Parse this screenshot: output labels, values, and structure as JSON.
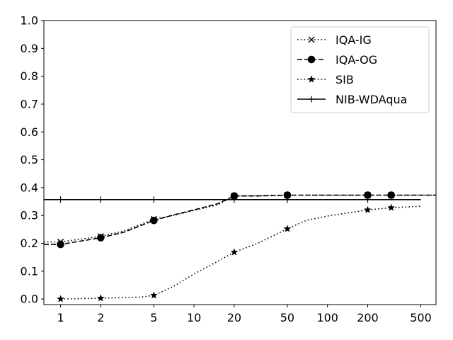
{
  "chart_data": {
    "type": "line",
    "title": "",
    "xlabel": "",
    "ylabel": "",
    "x_scale": "log",
    "xlim": [
      0.75,
      650
    ],
    "ylim": [
      -0.02,
      1.0
    ],
    "x_ticks": [
      1,
      2,
      5,
      10,
      20,
      50,
      100,
      200,
      500
    ],
    "x_tick_labels": [
      "1",
      "2",
      "5",
      "10",
      "20",
      "50",
      "100",
      "200",
      "500"
    ],
    "y_ticks": [
      0.0,
      0.1,
      0.2,
      0.3,
      0.4,
      0.5,
      0.6,
      0.7,
      0.8,
      0.9,
      1.0
    ],
    "y_tick_labels": [
      "0.0",
      "0.1",
      "0.2",
      "0.3",
      "0.4",
      "0.5",
      "0.6",
      "0.7",
      "0.8",
      "0.9",
      "1.0"
    ],
    "grid": false,
    "legend_position": "top-right",
    "series": [
      {
        "name": "IQA-IG",
        "color": "#000000",
        "line_style": "dotted",
        "marker": "x",
        "x": [
          0.75,
          1,
          2,
          3,
          5,
          7,
          10,
          15,
          20,
          30,
          50,
          100,
          200,
          300,
          650
        ],
        "y": [
          0.205,
          0.205,
          0.225,
          0.245,
          0.287,
          0.3,
          0.318,
          0.338,
          0.37,
          0.372,
          0.373,
          0.373,
          0.373,
          0.373,
          0.373
        ],
        "marker_x": [
          1,
          2,
          5,
          20,
          50,
          200,
          300
        ],
        "marker_y": [
          0.205,
          0.225,
          0.287,
          0.37,
          0.373,
          0.373,
          0.373
        ]
      },
      {
        "name": "IQA-OG",
        "color": "#000000",
        "line_style": "dashed",
        "marker": "o",
        "x": [
          0.75,
          1,
          2,
          3,
          5,
          7,
          10,
          15,
          20,
          30,
          50,
          100,
          200,
          300,
          650
        ],
        "y": [
          0.196,
          0.196,
          0.22,
          0.24,
          0.282,
          0.302,
          0.32,
          0.342,
          0.37,
          0.37,
          0.373,
          0.373,
          0.373,
          0.373,
          0.373
        ],
        "marker_x": [
          1,
          2,
          5,
          20,
          50,
          200,
          300
        ],
        "marker_y": [
          0.196,
          0.22,
          0.282,
          0.37,
          0.373,
          0.373,
          0.373
        ]
      },
      {
        "name": "SIB",
        "color": "#000000",
        "line_style": "dotted",
        "marker": "*",
        "x": [
          1,
          2,
          3,
          4,
          5,
          7,
          10,
          15,
          20,
          30,
          50,
          70,
          100,
          200,
          300,
          500
        ],
        "y": [
          0.0,
          0.003,
          0.005,
          0.007,
          0.013,
          0.045,
          0.09,
          0.135,
          0.168,
          0.2,
          0.252,
          0.283,
          0.298,
          0.32,
          0.328,
          0.333
        ],
        "marker_x": [
          1,
          2,
          5,
          20,
          50,
          200,
          300
        ],
        "marker_y": [
          0.0,
          0.003,
          0.013,
          0.168,
          0.252,
          0.32,
          0.328
        ]
      },
      {
        "name": "NIB-WDAqua",
        "color": "#000000",
        "line_style": "solid",
        "marker": "+",
        "x": [
          0.75,
          500
        ],
        "y": [
          0.357,
          0.357
        ],
        "marker_x": [
          1,
          2,
          5,
          20,
          50,
          200
        ],
        "marker_y": [
          0.357,
          0.357,
          0.357,
          0.357,
          0.357,
          0.357
        ]
      }
    ]
  }
}
